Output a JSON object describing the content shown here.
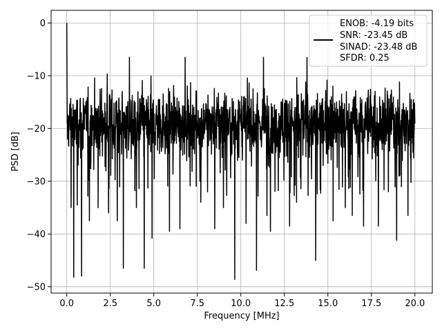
{
  "chart_data": {
    "type": "line",
    "xlabel": "Frequency [MHz]",
    "ylabel": "PSD [dB]",
    "xlim": [
      -0.9,
      21.0
    ],
    "ylim": [
      -51.2,
      2.4
    ],
    "xticks": [
      0.0,
      2.5,
      5.0,
      7.5,
      10.0,
      12.5,
      15.0,
      17.5,
      20.0
    ],
    "xtick_labels": [
      "0.0",
      "2.5",
      "5.0",
      "7.5",
      "10.0",
      "12.5",
      "15.0",
      "17.5",
      "20.0"
    ],
    "yticks": [
      0,
      -10,
      -20,
      -30,
      -40,
      -50
    ],
    "ytick_labels": [
      "0",
      "−10",
      "−20",
      "−30",
      "−40",
      "−50"
    ],
    "grid": true,
    "legend_position": "top-right",
    "legend": [
      "ENOB: -4.19 bits",
      "SNR: -23.45 dB",
      "SINAD: -23.48 dB",
      "SFDR: 0.25"
    ],
    "series": [
      {
        "color": "#000000",
        "x_range": [
          0.0,
          20.0
        ],
        "peak": {
          "x": 0.0,
          "y": 0.0
        },
        "typical_band": [
          -27,
          -11
        ],
        "max_envelope": -6.5,
        "deep_dips": [
          {
            "x": 0.25,
            "y": -35.0
          },
          {
            "x": 0.4,
            "y": -48.2
          },
          {
            "x": 0.6,
            "y": -34.5
          },
          {
            "x": 0.85,
            "y": -48.0
          },
          {
            "x": 1.3,
            "y": -37.5
          },
          {
            "x": 1.8,
            "y": -35.0
          },
          {
            "x": 2.4,
            "y": -36.0
          },
          {
            "x": 2.9,
            "y": -37.5
          },
          {
            "x": 3.25,
            "y": -46.5
          },
          {
            "x": 4.0,
            "y": -35.0
          },
          {
            "x": 4.45,
            "y": -46.5
          },
          {
            "x": 4.9,
            "y": -40.8
          },
          {
            "x": 5.9,
            "y": -39.5
          },
          {
            "x": 6.5,
            "y": -39.0
          },
          {
            "x": 6.8,
            "y": -40.5
          },
          {
            "x": 7.7,
            "y": -34.0
          },
          {
            "x": 8.5,
            "y": -39.0
          },
          {
            "x": 9.0,
            "y": -35.0
          },
          {
            "x": 9.65,
            "y": -48.6
          },
          {
            "x": 10.3,
            "y": -38.0
          },
          {
            "x": 10.9,
            "y": -46.9
          },
          {
            "x": 11.5,
            "y": -36.5
          },
          {
            "x": 11.7,
            "y": -39.5
          },
          {
            "x": 12.8,
            "y": -38.5
          },
          {
            "x": 13.2,
            "y": -34.0
          },
          {
            "x": 14.3,
            "y": -45.0
          },
          {
            "x": 15.3,
            "y": -37.5
          },
          {
            "x": 16.0,
            "y": -35.0
          },
          {
            "x": 16.4,
            "y": -36.5
          },
          {
            "x": 17.05,
            "y": -38.5
          },
          {
            "x": 17.9,
            "y": -38.5
          },
          {
            "x": 18.95,
            "y": -41.2
          },
          {
            "x": 19.6,
            "y": -36.5
          }
        ],
        "high_peaks": [
          {
            "x": 3.6,
            "y": -6.5
          },
          {
            "x": 6.8,
            "y": -6.5
          },
          {
            "x": 11.3,
            "y": -6.5
          },
          {
            "x": 13.8,
            "y": -6.5
          }
        ]
      }
    ]
  }
}
